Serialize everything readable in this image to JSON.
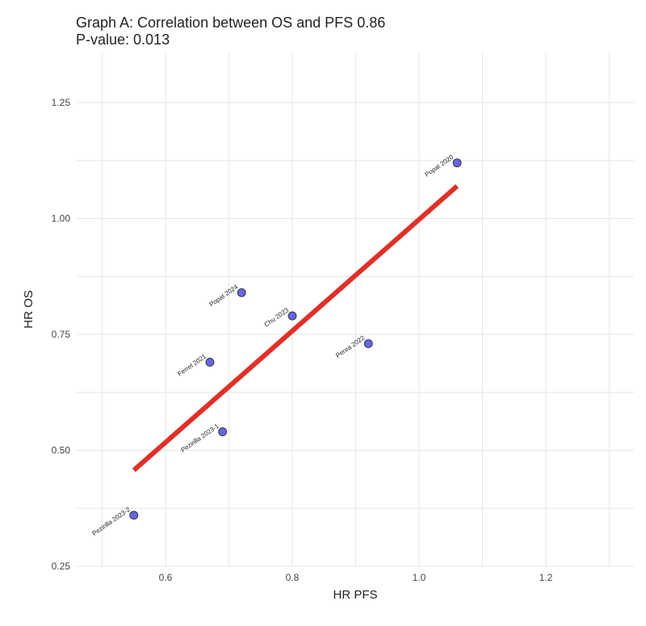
{
  "chart_data": {
    "type": "scatter",
    "title": "Graph A: Correlation between OS and PFS 0.86",
    "subtitle": "P-value:  0.013",
    "xlabel": "HR PFS",
    "ylabel": "HR OS",
    "xlim": [
      0.5,
      1.35
    ],
    "ylim": [
      0.25,
      1.35
    ],
    "x_ticks": [
      0.6,
      0.8,
      1.0,
      1.2
    ],
    "x_tick_labels": [
      "0.6",
      "0.8",
      "1.0",
      "1.2"
    ],
    "y_ticks": [
      0.25,
      0.5,
      0.75,
      1.0,
      1.25
    ],
    "y_tick_labels": [
      "0.25",
      "0.50",
      "0.75",
      "1.00",
      "1.25"
    ],
    "grid": true,
    "point_color": "#6666e0",
    "line_color": "#e03028",
    "points": [
      {
        "label": "Popat 2020",
        "x": 1.06,
        "y": 1.12
      },
      {
        "label": "Popat 2024",
        "x": 0.72,
        "y": 0.84
      },
      {
        "label": "Chu 2023",
        "x": 0.8,
        "y": 0.79
      },
      {
        "label": "Perea 2022",
        "x": 0.92,
        "y": 0.73
      },
      {
        "label": "Ferrel 2021",
        "x": 0.67,
        "y": 0.69
      },
      {
        "label": "Pezirilla 2023-1",
        "x": 0.69,
        "y": 0.54
      },
      {
        "label": "Pezirilla 2023-2",
        "x": 0.55,
        "y": 0.36
      }
    ],
    "fit_line": {
      "x": [
        0.55,
        1.06
      ],
      "y": [
        0.457,
        1.07
      ]
    }
  }
}
